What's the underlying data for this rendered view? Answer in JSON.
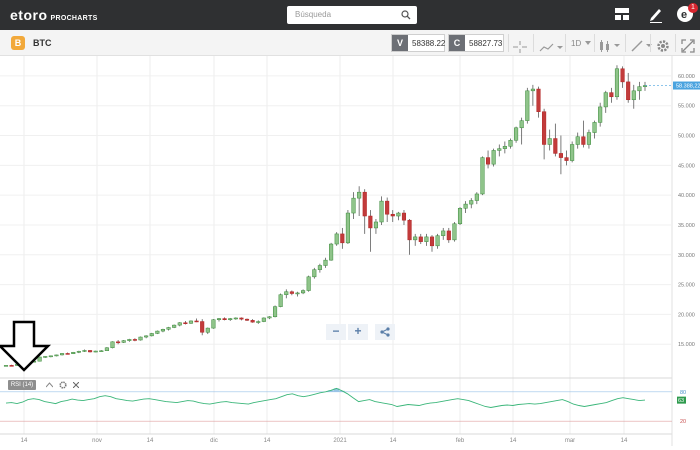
{
  "header": {
    "logo": "etoro",
    "logo_sub": "PROCHARTS",
    "search_placeholder": "Búsqueda",
    "notification_count": "1"
  },
  "toolbar": {
    "symbol": "BTC",
    "coin_letter": "B",
    "sell_tag": "V",
    "sell_price": "58388.22",
    "buy_tag": "C",
    "buy_price": "58827.73",
    "interval": "1D"
  },
  "chart_data": {
    "type": "candlestick",
    "price_axis": {
      "ticks": [
        "60.000",
        "55.000",
        "50.000",
        "45.000",
        "40.000",
        "35.000",
        "30.000",
        "25.000",
        "20.000",
        "15.000"
      ],
      "current_price": "58.388,22",
      "ylim": [
        10000,
        62000
      ]
    },
    "time_axis": {
      "ticks": [
        "14",
        "nov",
        "14",
        "dic",
        "14",
        "2021",
        "14",
        "feb",
        "14",
        "mar",
        "14"
      ]
    },
    "candles": [
      [
        11350,
        11500,
        11300,
        11450
      ],
      [
        11450,
        11550,
        11400,
        11420
      ],
      [
        11420,
        11700,
        11380,
        11650
      ],
      [
        11650,
        11850,
        11600,
        11800
      ],
      [
        11800,
        12100,
        11750,
        12050
      ],
      [
        12050,
        12300,
        11950,
        12150
      ],
      [
        12150,
        12900,
        12100,
        12850
      ],
      [
        12850,
        13000,
        12700,
        12950
      ],
      [
        12950,
        13100,
        12800,
        13050
      ],
      [
        13050,
        13250,
        12950,
        13200
      ],
      [
        13200,
        13500,
        13100,
        13450
      ],
      [
        13450,
        13600,
        13300,
        13400
      ],
      [
        13400,
        13700,
        13350,
        13650
      ],
      [
        13650,
        13900,
        13500,
        13800
      ],
      [
        13800,
        14100,
        13700,
        13950
      ],
      [
        13950,
        14000,
        13600,
        13700
      ],
      [
        13700,
        13900,
        13650,
        13850
      ],
      [
        13850,
        14000,
        13700,
        13900
      ],
      [
        13900,
        14500,
        13850,
        14400
      ],
      [
        14400,
        15500,
        14300,
        15400
      ],
      [
        15400,
        15700,
        15000,
        15300
      ],
      [
        15300,
        15700,
        15200,
        15600
      ],
      [
        15600,
        15900,
        15400,
        15800
      ],
      [
        15800,
        16000,
        15500,
        15700
      ],
      [
        15700,
        16300,
        15600,
        16200
      ],
      [
        16200,
        16500,
        16000,
        16400
      ],
      [
        16400,
        16900,
        16300,
        16800
      ],
      [
        16800,
        17300,
        16700,
        17200
      ],
      [
        17200,
        17600,
        17000,
        17500
      ],
      [
        17500,
        17900,
        17300,
        17800
      ],
      [
        17800,
        18300,
        17700,
        18200
      ],
      [
        18200,
        18700,
        18000,
        18600
      ],
      [
        18600,
        18900,
        18300,
        18500
      ],
      [
        18500,
        19000,
        18400,
        18900
      ],
      [
        18900,
        19300,
        18700,
        18800
      ],
      [
        18800,
        19200,
        16500,
        17000
      ],
      [
        17000,
        17800,
        16700,
        17700
      ],
      [
        17700,
        19200,
        17600,
        19100
      ],
      [
        19100,
        19400,
        18800,
        19300
      ],
      [
        19300,
        19500,
        19000,
        19100
      ],
      [
        19100,
        19400,
        18900,
        19300
      ],
      [
        19300,
        19500,
        19100,
        19400
      ],
      [
        19400,
        19500,
        19000,
        19200
      ],
      [
        19200,
        19300,
        18900,
        19000
      ],
      [
        19000,
        19200,
        18600,
        18700
      ],
      [
        18700,
        19000,
        18400,
        18800
      ],
      [
        18800,
        19500,
        18700,
        19400
      ],
      [
        19400,
        19700,
        19200,
        19600
      ],
      [
        19600,
        21500,
        19500,
        21300
      ],
      [
        21300,
        23500,
        21200,
        23300
      ],
      [
        23300,
        24200,
        22700,
        23800
      ],
      [
        23800,
        24000,
        23200,
        23500
      ],
      [
        23500,
        23800,
        23000,
        23600
      ],
      [
        23600,
        24200,
        23400,
        24000
      ],
      [
        24000,
        26500,
        23800,
        26300
      ],
      [
        26300,
        27800,
        26000,
        27500
      ],
      [
        27500,
        28500,
        27000,
        28200
      ],
      [
        28200,
        29500,
        27800,
        29100
      ],
      [
        29100,
        32000,
        29000,
        31800
      ],
      [
        31800,
        33800,
        31500,
        33500
      ],
      [
        33500,
        34500,
        31000,
        32000
      ],
      [
        32000,
        37500,
        31800,
        37000
      ],
      [
        37000,
        40500,
        36000,
        39500
      ],
      [
        39500,
        41500,
        36500,
        40500
      ],
      [
        40500,
        41000,
        33500,
        36500
      ],
      [
        36500,
        37500,
        30500,
        34500
      ],
      [
        34500,
        36000,
        33500,
        35500
      ],
      [
        35500,
        39800,
        35000,
        39000
      ],
      [
        39000,
        39600,
        35500,
        36800
      ],
      [
        36800,
        37500,
        35500,
        36500
      ],
      [
        36500,
        37200,
        35800,
        37000
      ],
      [
        37000,
        37500,
        35000,
        35800
      ],
      [
        35800,
        36000,
        30000,
        32500
      ],
      [
        32500,
        33500,
        31500,
        33000
      ],
      [
        33000,
        33500,
        31800,
        32200
      ],
      [
        32200,
        33500,
        31500,
        33000
      ],
      [
        33000,
        33300,
        30500,
        31500
      ],
      [
        31500,
        33500,
        31000,
        33200
      ],
      [
        33200,
        34500,
        32500,
        34000
      ],
      [
        34000,
        34500,
        32000,
        32500
      ],
      [
        32500,
        35500,
        32200,
        35200
      ],
      [
        35200,
        38000,
        35000,
        37800
      ],
      [
        37800,
        39000,
        37000,
        38500
      ],
      [
        38500,
        39500,
        37800,
        39100
      ],
      [
        39100,
        40500,
        38500,
        40200
      ],
      [
        40200,
        46500,
        40000,
        46300
      ],
      [
        46300,
        47500,
        44500,
        45200
      ],
      [
        45200,
        47800,
        44800,
        47500
      ],
      [
        47500,
        48500,
        46500,
        47800
      ],
      [
        47800,
        49000,
        47000,
        48200
      ],
      [
        48200,
        49500,
        47800,
        49200
      ],
      [
        49200,
        51500,
        48800,
        51300
      ],
      [
        51300,
        53000,
        48500,
        52500
      ],
      [
        52500,
        58000,
        52000,
        57500
      ],
      [
        57500,
        58500,
        55000,
        57800
      ],
      [
        57800,
        58200,
        53000,
        54000
      ],
      [
        54000,
        54500,
        46000,
        48500
      ],
      [
        48500,
        51000,
        47500,
        49500
      ],
      [
        49500,
        52000,
        46500,
        47000
      ],
      [
        47000,
        50000,
        43500,
        46300
      ],
      [
        46300,
        47500,
        45000,
        45800
      ],
      [
        45800,
        49000,
        45500,
        48500
      ],
      [
        48500,
        50500,
        47800,
        49800
      ],
      [
        49800,
        52500,
        48000,
        48500
      ],
      [
        48500,
        51000,
        47800,
        50500
      ],
      [
        50500,
        52500,
        49500,
        52200
      ],
      [
        52200,
        55500,
        51500,
        54800
      ],
      [
        54800,
        57500,
        53800,
        57200
      ],
      [
        57200,
        58000,
        55500,
        56500
      ],
      [
        56500,
        61800,
        56000,
        61200
      ],
      [
        61200,
        61600,
        58000,
        59000
      ],
      [
        59000,
        60500,
        55500,
        56000
      ],
      [
        56000,
        58500,
        54500,
        57500
      ],
      [
        57500,
        59000,
        56000,
        58200
      ],
      [
        58200,
        59000,
        57500,
        58388
      ]
    ],
    "rsi": {
      "label": "RSI (14)",
      "levels": [
        "80",
        "20"
      ],
      "current": "63",
      "values": [
        57,
        58,
        56,
        59,
        64,
        66,
        64,
        60,
        58,
        56,
        60,
        62,
        65,
        63,
        62,
        64,
        66,
        70,
        72,
        70,
        66,
        64,
        62,
        61,
        63,
        65,
        66,
        64,
        62,
        60,
        59,
        58,
        60,
        62,
        61,
        58,
        56,
        55,
        57,
        59,
        60,
        58,
        57,
        56,
        55,
        58,
        60,
        62,
        64,
        66,
        70,
        74,
        76,
        72,
        70,
        72,
        75,
        78,
        80,
        83,
        87,
        82,
        76,
        68,
        60,
        62,
        64,
        60,
        58,
        56,
        54,
        50,
        52,
        54,
        53,
        52,
        55,
        57,
        58,
        60,
        62,
        64,
        66,
        64,
        62,
        58,
        54,
        50,
        48,
        50,
        52,
        53,
        52,
        54,
        55,
        56,
        55,
        56,
        58,
        60,
        62,
        64,
        60,
        55,
        52,
        50,
        52,
        54,
        56,
        58,
        62,
        66,
        68,
        66,
        64,
        62,
        63
      ]
    }
  }
}
